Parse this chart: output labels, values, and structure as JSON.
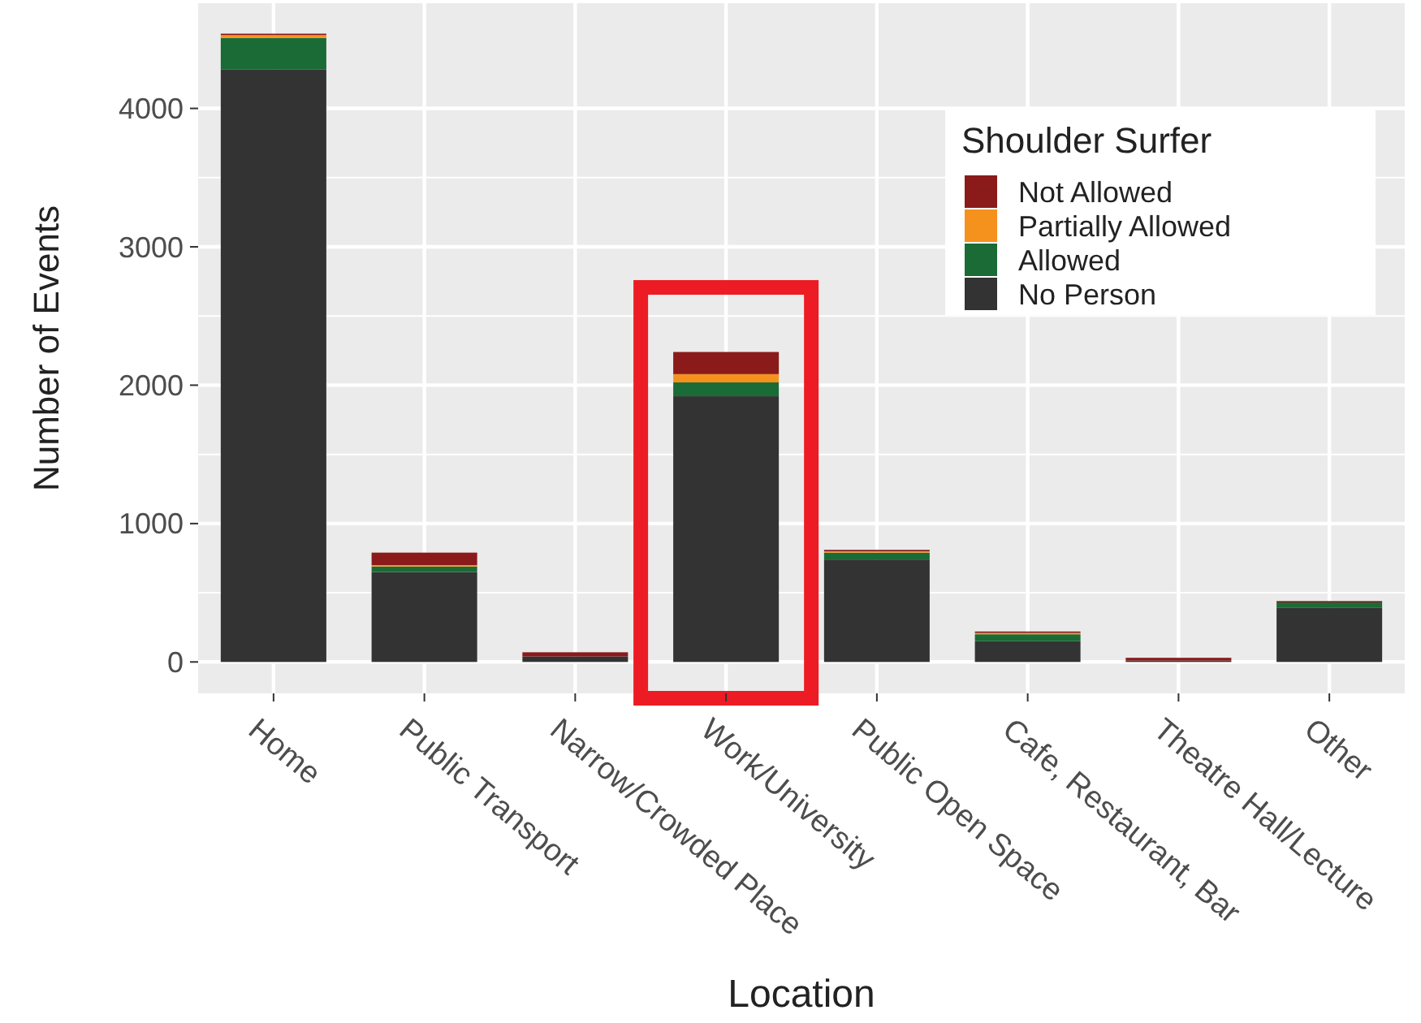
{
  "chart_data": {
    "type": "bar",
    "stacked": true,
    "xlabel": "Location",
    "ylabel": "Number of Events",
    "legend_title": "Shoulder Surfer",
    "legend": "top right",
    "grid": true,
    "categories": [
      "Home",
      "Public Transport",
      "Narrow/Crowded Place",
      "Work/University",
      "Public Open Space",
      "Cafe, Restaurant, Bar",
      "Theatre Hall/Lecture",
      "Other"
    ],
    "ylim": [
      -227,
      4760
    ],
    "yticks": [
      0,
      1000,
      2000,
      3000,
      4000
    ],
    "series": [
      {
        "name": "No Person",
        "color": "#333333",
        "values": [
          4280,
          650,
          40,
          1920,
          740,
          150,
          10,
          390
        ]
      },
      {
        "name": "Allowed",
        "color": "#1a6b35",
        "values": [
          230,
          40,
          null,
          100,
          50,
          50,
          null,
          40
        ]
      },
      {
        "name": "Partially Allowed",
        "color": "#f5921e",
        "values": [
          20,
          10,
          null,
          60,
          10,
          10,
          null,
          null
        ]
      },
      {
        "name": "Not Allowed",
        "color": "#8b1a1a",
        "values": [
          10,
          90,
          30,
          160,
          10,
          10,
          20,
          10
        ]
      }
    ]
  }
}
